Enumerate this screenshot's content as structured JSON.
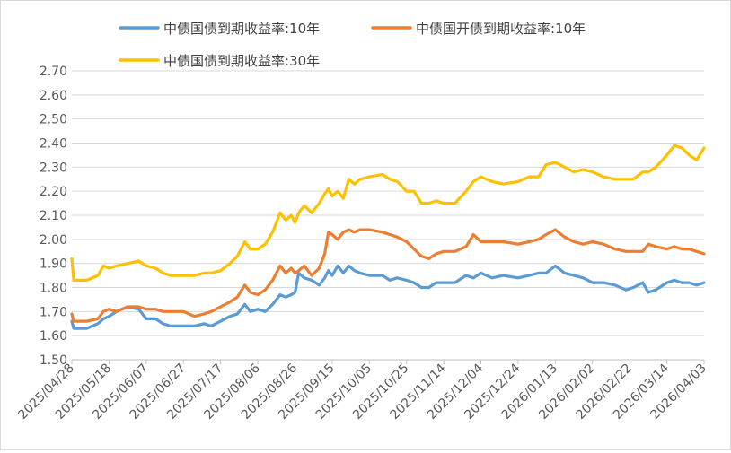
{
  "chart_data": {
    "type": "line",
    "title": "",
    "xlabel": "",
    "ylabel": "",
    "ylim": [
      1.5,
      2.7
    ],
    "y_ticks": [
      "1.50",
      "1.60",
      "1.70",
      "1.80",
      "1.90",
      "2.00",
      "2.10",
      "2.20",
      "2.30",
      "2.40",
      "2.50",
      "2.60",
      "2.70"
    ],
    "x_tick_labels": [
      "2025/04/28",
      "2025/05/18",
      "2025/06/07",
      "2025/06/27",
      "2025/07/17",
      "2025/08/06",
      "2025/08/26",
      "2025/09/15",
      "2025/10/05",
      "2025/10/25",
      "2025/11/14",
      "2025/12/04",
      "2025/12/24",
      "2026/01/13",
      "2026/02/02",
      "2026/02/22",
      "2026/03/14",
      "2026/04/03"
    ],
    "x_range": [
      "2025/04/28",
      "2026/04/03"
    ],
    "grid": "horizontal",
    "legend_position": "top",
    "series": [
      {
        "name": "中债国债到期收益率:10年",
        "color": "#5b9bd5",
        "points": [
          [
            "2025/04/28",
            1.66
          ],
          [
            "2025/04/29",
            1.63
          ],
          [
            "2025/05/06",
            1.63
          ],
          [
            "2025/05/12",
            1.65
          ],
          [
            "2025/05/15",
            1.67
          ],
          [
            "2025/05/18",
            1.68
          ],
          [
            "2025/05/22",
            1.7
          ],
          [
            "2025/05/28",
            1.72
          ],
          [
            "2025/06/03",
            1.71
          ],
          [
            "2025/06/07",
            1.67
          ],
          [
            "2025/06/12",
            1.67
          ],
          [
            "2025/06/16",
            1.65
          ],
          [
            "2025/06/20",
            1.64
          ],
          [
            "2025/06/27",
            1.64
          ],
          [
            "2025/07/03",
            1.64
          ],
          [
            "2025/07/08",
            1.65
          ],
          [
            "2025/07/12",
            1.64
          ],
          [
            "2025/07/17",
            1.66
          ],
          [
            "2025/07/22",
            1.68
          ],
          [
            "2025/07/26",
            1.69
          ],
          [
            "2025/07/30",
            1.73
          ],
          [
            "2025/08/02",
            1.7
          ],
          [
            "2025/08/06",
            1.71
          ],
          [
            "2025/08/10",
            1.7
          ],
          [
            "2025/08/14",
            1.73
          ],
          [
            "2025/08/18",
            1.77
          ],
          [
            "2025/08/21",
            1.76
          ],
          [
            "2025/08/24",
            1.77
          ],
          [
            "2025/08/26",
            1.78
          ],
          [
            "2025/08/28",
            1.86
          ],
          [
            "2025/08/31",
            1.84
          ],
          [
            "2025/09/04",
            1.83
          ],
          [
            "2025/09/08",
            1.81
          ],
          [
            "2025/09/11",
            1.84
          ],
          [
            "2025/09/13",
            1.87
          ],
          [
            "2025/09/15",
            1.85
          ],
          [
            "2025/09/18",
            1.89
          ],
          [
            "2025/09/21",
            1.86
          ],
          [
            "2025/09/24",
            1.89
          ],
          [
            "2025/09/27",
            1.87
          ],
          [
            "2025/09/30",
            1.86
          ],
          [
            "2025/10/05",
            1.85
          ],
          [
            "2025/10/12",
            1.85
          ],
          [
            "2025/10/16",
            1.83
          ],
          [
            "2025/10/20",
            1.84
          ],
          [
            "2025/10/25",
            1.83
          ],
          [
            "2025/10/29",
            1.82
          ],
          [
            "2025/11/02",
            1.8
          ],
          [
            "2025/11/06",
            1.8
          ],
          [
            "2025/11/10",
            1.82
          ],
          [
            "2025/11/14",
            1.82
          ],
          [
            "2025/11/20",
            1.82
          ],
          [
            "2025/11/26",
            1.85
          ],
          [
            "2025/11/30",
            1.84
          ],
          [
            "2025/12/04",
            1.86
          ],
          [
            "2025/12/10",
            1.84
          ],
          [
            "2025/12/16",
            1.85
          ],
          [
            "2025/12/24",
            1.84
          ],
          [
            "2025/12/30",
            1.85
          ],
          [
            "2026/01/04",
            1.86
          ],
          [
            "2026/01/08",
            1.86
          ],
          [
            "2026/01/13",
            1.89
          ],
          [
            "2026/01/18",
            1.86
          ],
          [
            "2026/01/23",
            1.85
          ],
          [
            "2026/01/28",
            1.84
          ],
          [
            "2026/02/02",
            1.82
          ],
          [
            "2026/02/08",
            1.82
          ],
          [
            "2026/02/14",
            1.81
          ],
          [
            "2026/02/20",
            1.79
          ],
          [
            "2026/02/24",
            1.8
          ],
          [
            "2026/03/01",
            1.82
          ],
          [
            "2026/03/04",
            1.78
          ],
          [
            "2026/03/08",
            1.79
          ],
          [
            "2026/03/14",
            1.82
          ],
          [
            "2026/03/18",
            1.83
          ],
          [
            "2026/03/22",
            1.82
          ],
          [
            "2026/03/26",
            1.82
          ],
          [
            "2026/03/30",
            1.81
          ],
          [
            "2026/04/03",
            1.82
          ]
        ]
      },
      {
        "name": "中债国开债到期收益率:10年",
        "color": "#ed7d31",
        "points": [
          [
            "2025/04/28",
            1.69
          ],
          [
            "2025/04/29",
            1.66
          ],
          [
            "2025/05/06",
            1.66
          ],
          [
            "2025/05/12",
            1.67
          ],
          [
            "2025/05/15",
            1.7
          ],
          [
            "2025/05/18",
            1.71
          ],
          [
            "2025/05/22",
            1.7
          ],
          [
            "2025/05/28",
            1.72
          ],
          [
            "2025/06/03",
            1.72
          ],
          [
            "2025/06/07",
            1.71
          ],
          [
            "2025/06/12",
            1.71
          ],
          [
            "2025/06/16",
            1.7
          ],
          [
            "2025/06/20",
            1.7
          ],
          [
            "2025/06/27",
            1.7
          ],
          [
            "2025/07/03",
            1.68
          ],
          [
            "2025/07/08",
            1.69
          ],
          [
            "2025/07/12",
            1.7
          ],
          [
            "2025/07/17",
            1.72
          ],
          [
            "2025/07/22",
            1.74
          ],
          [
            "2025/07/26",
            1.76
          ],
          [
            "2025/07/30",
            1.81
          ],
          [
            "2025/08/02",
            1.78
          ],
          [
            "2025/08/06",
            1.77
          ],
          [
            "2025/08/10",
            1.79
          ],
          [
            "2025/08/14",
            1.83
          ],
          [
            "2025/08/18",
            1.89
          ],
          [
            "2025/08/21",
            1.86
          ],
          [
            "2025/08/24",
            1.88
          ],
          [
            "2025/08/26",
            1.86
          ],
          [
            "2025/08/28",
            1.87
          ],
          [
            "2025/08/31",
            1.89
          ],
          [
            "2025/09/04",
            1.85
          ],
          [
            "2025/09/08",
            1.88
          ],
          [
            "2025/09/11",
            1.94
          ],
          [
            "2025/09/13",
            2.03
          ],
          [
            "2025/09/15",
            2.02
          ],
          [
            "2025/09/18",
            2.0
          ],
          [
            "2025/09/21",
            2.03
          ],
          [
            "2025/09/24",
            2.04
          ],
          [
            "2025/09/27",
            2.03
          ],
          [
            "2025/09/30",
            2.04
          ],
          [
            "2025/10/05",
            2.04
          ],
          [
            "2025/10/12",
            2.03
          ],
          [
            "2025/10/16",
            2.02
          ],
          [
            "2025/10/20",
            2.01
          ],
          [
            "2025/10/25",
            1.99
          ],
          [
            "2025/10/29",
            1.96
          ],
          [
            "2025/11/02",
            1.93
          ],
          [
            "2025/11/06",
            1.92
          ],
          [
            "2025/11/10",
            1.94
          ],
          [
            "2025/11/14",
            1.95
          ],
          [
            "2025/11/20",
            1.95
          ],
          [
            "2025/11/26",
            1.97
          ],
          [
            "2025/11/30",
            2.02
          ],
          [
            "2025/12/04",
            1.99
          ],
          [
            "2025/12/10",
            1.99
          ],
          [
            "2025/12/16",
            1.99
          ],
          [
            "2025/12/24",
            1.98
          ],
          [
            "2025/12/30",
            1.99
          ],
          [
            "2026/01/04",
            2.0
          ],
          [
            "2026/01/08",
            2.02
          ],
          [
            "2026/01/13",
            2.04
          ],
          [
            "2026/01/18",
            2.01
          ],
          [
            "2026/01/23",
            1.99
          ],
          [
            "2026/01/28",
            1.98
          ],
          [
            "2026/02/02",
            1.99
          ],
          [
            "2026/02/08",
            1.98
          ],
          [
            "2026/02/14",
            1.96
          ],
          [
            "2026/02/20",
            1.95
          ],
          [
            "2026/02/24",
            1.95
          ],
          [
            "2026/03/01",
            1.95
          ],
          [
            "2026/03/04",
            1.98
          ],
          [
            "2026/03/08",
            1.97
          ],
          [
            "2026/03/14",
            1.96
          ],
          [
            "2026/03/18",
            1.97
          ],
          [
            "2026/03/22",
            1.96
          ],
          [
            "2026/03/26",
            1.96
          ],
          [
            "2026/03/30",
            1.95
          ],
          [
            "2026/04/03",
            1.94
          ]
        ]
      },
      {
        "name": "中债国债到期收益率:30年",
        "color": "#ffc000",
        "points": [
          [
            "2025/04/28",
            1.92
          ],
          [
            "2025/04/29",
            1.83
          ],
          [
            "2025/05/06",
            1.83
          ],
          [
            "2025/05/12",
            1.85
          ],
          [
            "2025/05/15",
            1.89
          ],
          [
            "2025/05/18",
            1.88
          ],
          [
            "2025/05/22",
            1.89
          ],
          [
            "2025/05/28",
            1.9
          ],
          [
            "2025/06/03",
            1.91
          ],
          [
            "2025/06/07",
            1.89
          ],
          [
            "2025/06/12",
            1.88
          ],
          [
            "2025/06/16",
            1.86
          ],
          [
            "2025/06/20",
            1.85
          ],
          [
            "2025/06/27",
            1.85
          ],
          [
            "2025/07/03",
            1.85
          ],
          [
            "2025/07/08",
            1.86
          ],
          [
            "2025/07/12",
            1.86
          ],
          [
            "2025/07/17",
            1.87
          ],
          [
            "2025/07/22",
            1.9
          ],
          [
            "2025/07/26",
            1.93
          ],
          [
            "2025/07/30",
            1.99
          ],
          [
            "2025/08/02",
            1.96
          ],
          [
            "2025/08/06",
            1.96
          ],
          [
            "2025/08/10",
            1.98
          ],
          [
            "2025/08/14",
            2.03
          ],
          [
            "2025/08/18",
            2.11
          ],
          [
            "2025/08/21",
            2.08
          ],
          [
            "2025/08/24",
            2.1
          ],
          [
            "2025/08/26",
            2.07
          ],
          [
            "2025/08/28",
            2.11
          ],
          [
            "2025/08/31",
            2.14
          ],
          [
            "2025/09/04",
            2.11
          ],
          [
            "2025/09/08",
            2.15
          ],
          [
            "2025/09/11",
            2.19
          ],
          [
            "2025/09/13",
            2.21
          ],
          [
            "2025/09/15",
            2.18
          ],
          [
            "2025/09/18",
            2.2
          ],
          [
            "2025/09/21",
            2.17
          ],
          [
            "2025/09/24",
            2.25
          ],
          [
            "2025/09/27",
            2.23
          ],
          [
            "2025/09/30",
            2.25
          ],
          [
            "2025/10/05",
            2.26
          ],
          [
            "2025/10/12",
            2.27
          ],
          [
            "2025/10/16",
            2.25
          ],
          [
            "2025/10/20",
            2.24
          ],
          [
            "2025/10/25",
            2.2
          ],
          [
            "2025/10/29",
            2.2
          ],
          [
            "2025/11/02",
            2.15
          ],
          [
            "2025/11/06",
            2.15
          ],
          [
            "2025/11/10",
            2.16
          ],
          [
            "2025/11/14",
            2.15
          ],
          [
            "2025/11/20",
            2.15
          ],
          [
            "2025/11/26",
            2.2
          ],
          [
            "2025/11/30",
            2.24
          ],
          [
            "2025/12/04",
            2.26
          ],
          [
            "2025/12/10",
            2.24
          ],
          [
            "2025/12/16",
            2.23
          ],
          [
            "2025/12/24",
            2.24
          ],
          [
            "2025/12/30",
            2.26
          ],
          [
            "2026/01/04",
            2.26
          ],
          [
            "2026/01/08",
            2.31
          ],
          [
            "2026/01/13",
            2.32
          ],
          [
            "2026/01/18",
            2.3
          ],
          [
            "2026/01/23",
            2.28
          ],
          [
            "2026/01/28",
            2.29
          ],
          [
            "2026/02/02",
            2.28
          ],
          [
            "2026/02/08",
            2.26
          ],
          [
            "2026/02/14",
            2.25
          ],
          [
            "2026/02/20",
            2.25
          ],
          [
            "2026/02/24",
            2.25
          ],
          [
            "2026/03/01",
            2.28
          ],
          [
            "2026/03/04",
            2.28
          ],
          [
            "2026/03/08",
            2.3
          ],
          [
            "2026/03/14",
            2.35
          ],
          [
            "2026/03/18",
            2.39
          ],
          [
            "2026/03/22",
            2.38
          ],
          [
            "2026/03/26",
            2.35
          ],
          [
            "2026/03/30",
            2.33
          ],
          [
            "2026/04/03",
            2.38
          ]
        ]
      }
    ]
  }
}
